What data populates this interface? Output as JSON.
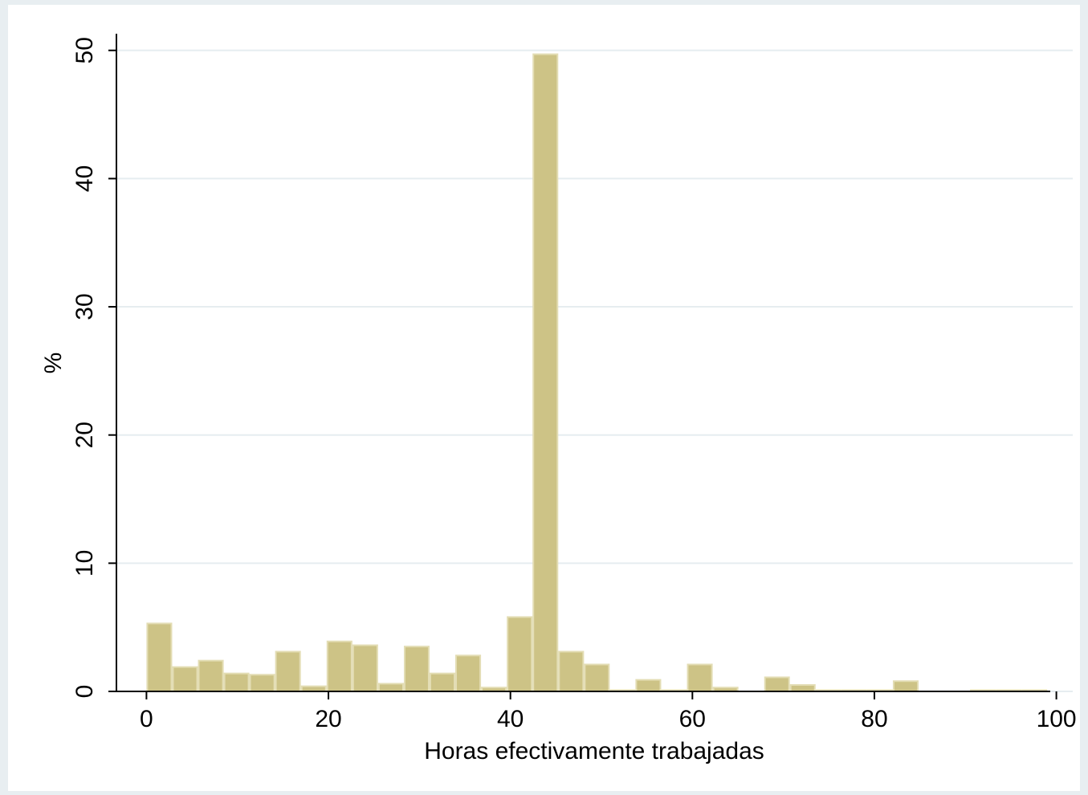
{
  "chart_data": {
    "type": "histogram",
    "xlabel": "Horas efectivamente trabajadas",
    "ylabel": "%",
    "bins": [
      0,
      2.83,
      5.66,
      8.49,
      11.31,
      14.14,
      16.97,
      19.8,
      22.63,
      25.46,
      28.29,
      31.11,
      33.94,
      36.77,
      39.6,
      42.43,
      45.26,
      48.09,
      50.91,
      53.74,
      56.57,
      59.4,
      62.23,
      65.06,
      67.89,
      70.71,
      73.54,
      76.37,
      79.2,
      82.03,
      84.86,
      87.69,
      90.51,
      93.34,
      96.17,
      99
    ],
    "values": [
      5.3,
      1.9,
      2.4,
      1.4,
      1.3,
      3.1,
      0.4,
      3.9,
      3.6,
      0.6,
      3.5,
      1.4,
      2.8,
      0.3,
      5.8,
      49.7,
      3.1,
      2.1,
      0.1,
      0.9,
      0.1,
      2.1,
      0.3,
      0,
      1.1,
      0.5,
      0.1,
      0.1,
      0.1,
      0.8,
      0,
      0,
      0.1,
      0.1,
      0.1
    ],
    "color": "#cdc386",
    "xlim": [
      -3.3,
      101.8
    ],
    "xticks": [
      0,
      20,
      40,
      60,
      80,
      100
    ],
    "ylim": [
      0,
      51.3
    ],
    "yticks": [
      0,
      10,
      20,
      30,
      40,
      50
    ],
    "grid": true
  }
}
